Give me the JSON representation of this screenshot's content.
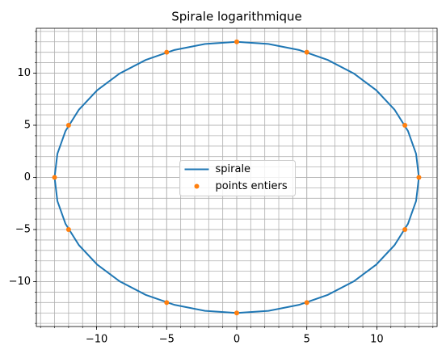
{
  "chart_data": {
    "type": "line",
    "title": "Spirale logarithmique",
    "xlim": [
      -14.3,
      14.3
    ],
    "ylim": [
      -14.3,
      14.3
    ],
    "xticks": [
      {
        "value": -10,
        "label": "−10"
      },
      {
        "value": -5,
        "label": "−5"
      },
      0,
      5,
      10
    ],
    "yticks": [
      {
        "value": -10,
        "label": "−10"
      },
      {
        "value": -5,
        "label": "−5"
      },
      0,
      5,
      10
    ],
    "minor_xticks": [
      -14,
      -13,
      -12,
      -11,
      -10,
      -9,
      -8,
      -7,
      -6,
      -5,
      -4,
      -3,
      -2,
      -1,
      0,
      1,
      2,
      3,
      4,
      5,
      6,
      7,
      8,
      9,
      10,
      11,
      12,
      13,
      14
    ],
    "minor_yticks": [
      -14,
      -13,
      -12,
      -11,
      -10,
      -9,
      -8,
      -7,
      -6,
      -5,
      -4,
      -3,
      -2,
      -1,
      0,
      1,
      2,
      3,
      4,
      5,
      6,
      7,
      8,
      9,
      10,
      11,
      12,
      13,
      14
    ],
    "grid": true,
    "legend": "center",
    "series": [
      {
        "name": "spirale",
        "type": "line",
        "color": "#1f77b4",
        "x": [
          13,
          12.8,
          12.22,
          11.26,
          9.96,
          8.36,
          6.5,
          4.45,
          2.26,
          0,
          -2.26,
          -4.45,
          -6.5,
          -8.36,
          -9.96,
          -11.26,
          -12.22,
          -12.8,
          -13,
          -12.8,
          -12.22,
          -11.26,
          -9.96,
          -8.36,
          -6.5,
          -4.45,
          -2.26,
          0,
          2.26,
          4.45,
          6.5,
          8.36,
          9.96,
          11.26,
          12.22,
          12.8,
          13
        ],
        "y": [
          0,
          2.26,
          4.45,
          6.5,
          8.36,
          9.96,
          11.26,
          12.22,
          12.8,
          13,
          12.8,
          12.22,
          11.26,
          9.96,
          8.36,
          6.5,
          4.45,
          2.26,
          0,
          -2.26,
          -4.45,
          -6.5,
          -8.36,
          -9.96,
          -11.26,
          -12.22,
          -12.8,
          -13,
          -12.8,
          -12.22,
          -11.26,
          -9.96,
          -8.36,
          -6.5,
          -4.45,
          -2.26,
          0
        ]
      },
      {
        "name": "points entiers",
        "type": "scatter",
        "color": "#ff7f0e",
        "x": [
          13,
          12,
          5,
          0,
          -5,
          -12,
          -13,
          -12,
          -5,
          0,
          5,
          12
        ],
        "y": [
          0,
          5,
          12,
          13,
          12,
          5,
          0,
          -5,
          -12,
          -13,
          -12,
          -5
        ]
      }
    ]
  }
}
